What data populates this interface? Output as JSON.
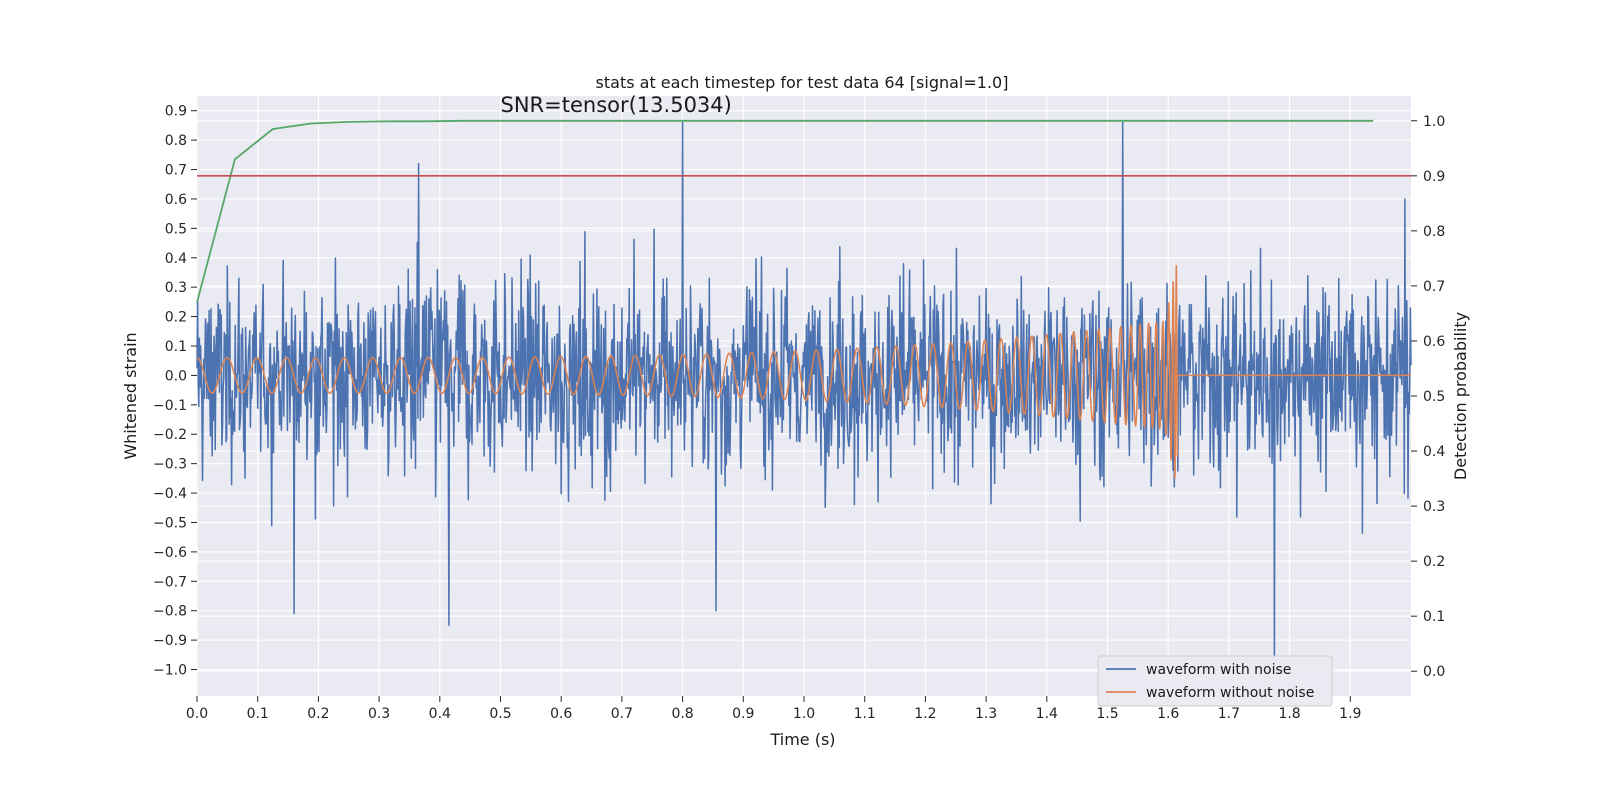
{
  "chart_data": {
    "type": "line",
    "title": "stats at each timestep for test data 64 [signal=1.0]",
    "xlabel": "Time (s)",
    "ylabel": "Whitened strain",
    "y2label": "Detection probability",
    "xlim": [
      0.0,
      2.0
    ],
    "ylim": [
      -1.09,
      0.95
    ],
    "y2lim": [
      -0.045,
      1.045
    ],
    "x_ticks": [
      "0.0",
      "0.1",
      "0.2",
      "0.3",
      "0.4",
      "0.5",
      "0.6",
      "0.7",
      "0.8",
      "0.9",
      "1.0",
      "1.1",
      "1.2",
      "1.3",
      "1.4",
      "1.5",
      "1.6",
      "1.7",
      "1.8",
      "1.9"
    ],
    "y_ticks": [
      "0.9",
      "0.8",
      "0.7",
      "0.6",
      "0.5",
      "0.4",
      "0.3",
      "0.2",
      "0.1",
      "0.0",
      "−0.1",
      "−0.2",
      "−0.3",
      "−0.4",
      "−0.5",
      "−0.6",
      "−0.7",
      "−0.8",
      "−0.9",
      "−1.0"
    ],
    "y2_ticks": [
      "1.0",
      "0.9",
      "0.8",
      "0.7",
      "0.6",
      "0.5",
      "0.4",
      "0.3",
      "0.2",
      "0.1",
      "0.0"
    ],
    "annotation": "SNR=tensor(13.5034)",
    "annotation_pos": [
      0.5,
      0.92
    ],
    "threshold": {
      "value": 0.9,
      "axis": "y2",
      "color": "#c44e52"
    },
    "series": [
      {
        "name": "waveform with noise",
        "axis": "y",
        "color": "#4c72b0",
        "note": "high-frequency whitened noise, approx range -1.0 to 0.86, spans 0.0-2.0 s; procedurally generated",
        "extreme_points": [
          [
            0.16,
            -0.81
          ],
          [
            0.365,
            0.72
          ],
          [
            0.415,
            -0.85
          ],
          [
            0.8,
            0.86
          ],
          [
            0.855,
            -0.8
          ],
          [
            1.525,
            0.86
          ],
          [
            1.775,
            -1.0
          ],
          [
            1.99,
            0.6
          ]
        ]
      },
      {
        "name": "waveform without noise",
        "axis": "y",
        "color": "#dd8452",
        "note": "chirp with increasing frequency and amplitude, merger near 1.615 s, zero afterwards",
        "amp_start": 0.06,
        "amp_before_merger": 0.19,
        "peak": 0.39,
        "merger_time": 1.615,
        "end_time": 2.0
      },
      {
        "name": "detection probability",
        "axis": "y2",
        "color": "#55a868",
        "x": [
          0.0,
          0.0625,
          0.125,
          0.1875,
          0.25,
          0.3125,
          0.375,
          0.4375,
          0.5,
          0.5625,
          0.625,
          0.6875,
          0.75,
          0.8125,
          0.875,
          0.9375,
          1.0,
          1.0625,
          1.125,
          1.1875,
          1.25,
          1.3125,
          1.375,
          1.4375,
          1.5,
          1.5625,
          1.625,
          1.6875,
          1.75,
          1.8125,
          1.875,
          1.9375
        ],
        "y": [
          0.67,
          0.93,
          0.985,
          0.995,
          0.998,
          0.999,
          0.999,
          1.0,
          1.0,
          1.0,
          1.0,
          1.0,
          1.0,
          1.0,
          1.0,
          1.0,
          1.0,
          1.0,
          1.0,
          1.0,
          1.0,
          1.0,
          1.0,
          1.0,
          1.0,
          1.0,
          1.0,
          1.0,
          1.0,
          1.0,
          1.0,
          1.0
        ]
      }
    ],
    "legend": {
      "placement": "lower-right",
      "entries": [
        {
          "label": "waveform with noise",
          "color": "#4c72b0"
        },
        {
          "label": "waveform without noise",
          "color": "#dd8452"
        }
      ]
    },
    "grid": true,
    "background": "#eaeaf2"
  }
}
